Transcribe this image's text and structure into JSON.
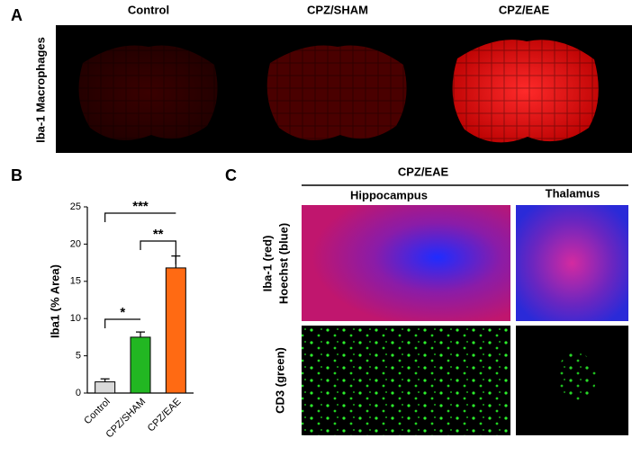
{
  "panels": {
    "a": {
      "label": "A",
      "columns": [
        "Control",
        "CPZ/SHAM",
        "CPZ/EAE"
      ],
      "row_label": "Iba-1 Macrophages"
    },
    "c": {
      "label": "C",
      "group": "CPZ/EAE",
      "columns": [
        "Hippocampus",
        "Thalamus"
      ],
      "row_labels": [
        [
          "Iba-1 (red)",
          "Hoechst (blue)"
        ],
        [
          "CD3 (green)"
        ]
      ]
    }
  },
  "chart_data": {
    "type": "bar",
    "panel_label": "B",
    "y_label": "Iba1 (% Area)",
    "categories": [
      "Control",
      "CPZ/SHAM",
      "CPZ/EAE"
    ],
    "values": [
      1.5,
      7.5,
      16.8
    ],
    "errors": [
      0.4,
      0.7,
      1.6
    ],
    "colors": [
      "#d9d9d9",
      "#22b722",
      "#ff6a13"
    ],
    "ylim": [
      0,
      25
    ],
    "yticks": [
      0,
      5,
      10,
      15,
      20,
      25
    ],
    "annotations": [
      "*",
      "**",
      "***"
    ]
  }
}
